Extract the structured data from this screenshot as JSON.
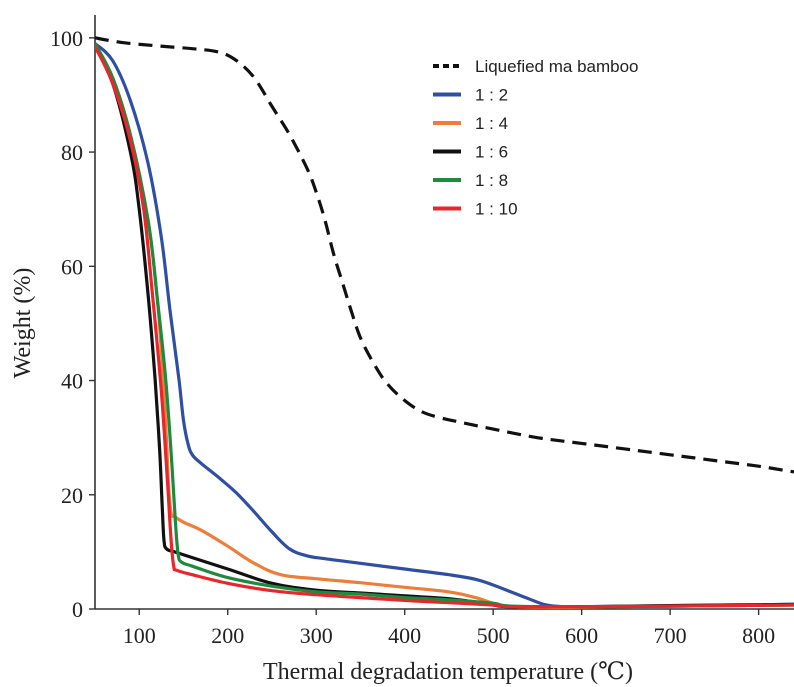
{
  "chart_data": {
    "type": "line",
    "title": "",
    "xlabel": "Thermal degradation temperature (℃)",
    "ylabel": "Weight (%)",
    "xlim": [
      50,
      840
    ],
    "ylim": [
      0,
      104
    ],
    "xticks": [
      100,
      200,
      300,
      400,
      500,
      600,
      700,
      800
    ],
    "yticks": [
      0,
      20,
      40,
      60,
      80,
      100
    ],
    "grid": false,
    "legend_position": "top-right",
    "series": [
      {
        "name": "Liquefied ma bamboo",
        "color": "#111111",
        "dash": "dashed",
        "points": [
          [
            50,
            100
          ],
          [
            80,
            99.2
          ],
          [
            120,
            98.6
          ],
          [
            160,
            98.1
          ],
          [
            190,
            97.5
          ],
          [
            210,
            96
          ],
          [
            230,
            93
          ],
          [
            250,
            88
          ],
          [
            270,
            83
          ],
          [
            290,
            77
          ],
          [
            300,
            73
          ],
          [
            310,
            68
          ],
          [
            320,
            62
          ],
          [
            330,
            57
          ],
          [
            340,
            52
          ],
          [
            350,
            47.5
          ],
          [
            365,
            43
          ],
          [
            380,
            39.5
          ],
          [
            400,
            36.5
          ],
          [
            420,
            34.5
          ],
          [
            440,
            33.5
          ],
          [
            460,
            32.8
          ],
          [
            500,
            31.5
          ],
          [
            550,
            30
          ],
          [
            600,
            29
          ],
          [
            650,
            28
          ],
          [
            700,
            27
          ],
          [
            750,
            26
          ],
          [
            800,
            25
          ],
          [
            840,
            24
          ]
        ]
      },
      {
        "name": "1 : 2",
        "color": "#2f4fa3",
        "dash": "solid",
        "points": [
          [
            50,
            99
          ],
          [
            70,
            96
          ],
          [
            90,
            89
          ],
          [
            110,
            78
          ],
          [
            125,
            65
          ],
          [
            135,
            52
          ],
          [
            145,
            40
          ],
          [
            150,
            33
          ],
          [
            155,
            29
          ],
          [
            160,
            27
          ],
          [
            170,
            25.5
          ],
          [
            190,
            23
          ],
          [
            210,
            20.3
          ],
          [
            230,
            17
          ],
          [
            250,
            13.5
          ],
          [
            270,
            10.5
          ],
          [
            290,
            9.3
          ],
          [
            310,
            8.8
          ],
          [
            350,
            8
          ],
          [
            400,
            7
          ],
          [
            450,
            6
          ],
          [
            480,
            5.2
          ],
          [
            500,
            4.2
          ],
          [
            520,
            3
          ],
          [
            540,
            1.8
          ],
          [
            560,
            0.7
          ],
          [
            580,
            0.4
          ],
          [
            600,
            0.4
          ],
          [
            700,
            0.6
          ],
          [
            840,
            0.8
          ]
        ]
      },
      {
        "name": "1 : 4",
        "color": "#ef7d3a",
        "dash": "solid",
        "points": [
          [
            50,
            98.5
          ],
          [
            70,
            93
          ],
          [
            90,
            83
          ],
          [
            110,
            68
          ],
          [
            120,
            55
          ],
          [
            125,
            45
          ],
          [
            130,
            32
          ],
          [
            133,
            22
          ],
          [
            136,
            16.8
          ],
          [
            140,
            16.2
          ],
          [
            150,
            15.2
          ],
          [
            170,
            13.8
          ],
          [
            200,
            11
          ],
          [
            230,
            8
          ],
          [
            260,
            6
          ],
          [
            300,
            5.3
          ],
          [
            350,
            4.6
          ],
          [
            400,
            3.8
          ],
          [
            450,
            3
          ],
          [
            480,
            2
          ],
          [
            500,
            1
          ],
          [
            520,
            0.4
          ],
          [
            560,
            0.3
          ],
          [
            600,
            0.3
          ],
          [
            700,
            0.5
          ],
          [
            840,
            0.7
          ]
        ]
      },
      {
        "name": "1 : 6",
        "color": "#111111",
        "dash": "solid",
        "points": [
          [
            50,
            98.5
          ],
          [
            70,
            92
          ],
          [
            90,
            80
          ],
          [
            100,
            70
          ],
          [
            110,
            55
          ],
          [
            118,
            40
          ],
          [
            123,
            28
          ],
          [
            126,
            18
          ],
          [
            128,
            12
          ],
          [
            131,
            10.5
          ],
          [
            140,
            10
          ],
          [
            160,
            9
          ],
          [
            200,
            7
          ],
          [
            250,
            4.5
          ],
          [
            300,
            3.3
          ],
          [
            350,
            2.8
          ],
          [
            400,
            2.3
          ],
          [
            450,
            1.8
          ],
          [
            480,
            1.2
          ],
          [
            500,
            0.7
          ],
          [
            520,
            0.4
          ],
          [
            600,
            0.4
          ],
          [
            700,
            0.6
          ],
          [
            840,
            0.8
          ]
        ]
      },
      {
        "name": "1 : 8",
        "color": "#1f8a3e",
        "dash": "solid",
        "points": [
          [
            50,
            99
          ],
          [
            70,
            93
          ],
          [
            90,
            83
          ],
          [
            110,
            68
          ],
          [
            120,
            55
          ],
          [
            130,
            40
          ],
          [
            137,
            25
          ],
          [
            141,
            15
          ],
          [
            144,
            9.5
          ],
          [
            148,
            8.2
          ],
          [
            160,
            7.5
          ],
          [
            200,
            5.5
          ],
          [
            250,
            4
          ],
          [
            300,
            3
          ],
          [
            350,
            2.6
          ],
          [
            400,
            2
          ],
          [
            450,
            1.6
          ],
          [
            500,
            1
          ],
          [
            520,
            0.5
          ],
          [
            600,
            0.4
          ],
          [
            700,
            0.5
          ],
          [
            840,
            0.7
          ]
        ]
      },
      {
        "name": "1 : 10",
        "color": "#e8262b",
        "dash": "solid",
        "points": [
          [
            50,
            98.5
          ],
          [
            70,
            92
          ],
          [
            90,
            82
          ],
          [
            105,
            70
          ],
          [
            115,
            55
          ],
          [
            125,
            38
          ],
          [
            132,
            22
          ],
          [
            136,
            12
          ],
          [
            139,
            7.5
          ],
          [
            142,
            6.8
          ],
          [
            160,
            6
          ],
          [
            200,
            4.5
          ],
          [
            250,
            3.2
          ],
          [
            300,
            2.5
          ],
          [
            350,
            2
          ],
          [
            400,
            1.5
          ],
          [
            450,
            1.1
          ],
          [
            500,
            0.7
          ],
          [
            520,
            0.4
          ],
          [
            600,
            0.4
          ],
          [
            700,
            0.5
          ],
          [
            840,
            0.7
          ]
        ]
      }
    ]
  }
}
